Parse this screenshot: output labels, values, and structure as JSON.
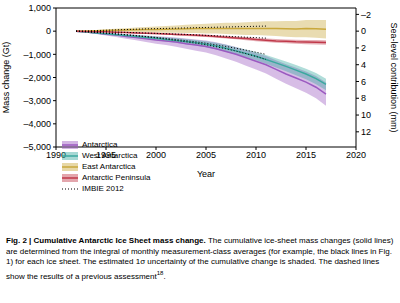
{
  "chart_data": {
    "type": "line",
    "x_label": "Year",
    "y_label": "Mass change (Gt)",
    "y2_label": "Sea-level contribution (mm)",
    "caption_title": "Fig. 2 | Cumulative Antarctic Ice Sheet mass change.",
    "caption": " The cumulative ice-sheet mass changes (solid lines) are determined from the integral of monthly measurement-class averages (for example, the black lines in Fig. 1) for each ice sheet. The estimated 1σ uncertainty of the cumulative change is shaded. The dashed lines show the results of a previous assessment",
    "caption_ref": "18",
    "x": [
      1992,
      1993,
      1994,
      1995,
      1996,
      1997,
      1998,
      1999,
      2000,
      2001,
      2002,
      2003,
      2004,
      2005,
      2006,
      2007,
      2008,
      2009,
      2010,
      2011,
      2012,
      2013,
      2014,
      2015,
      2016,
      2017
    ],
    "xlim": [
      1990,
      2020
    ],
    "xticks": [
      1990,
      1995,
      2000,
      2005,
      2010,
      2015,
      2020
    ],
    "ylim": [
      -5000,
      1000
    ],
    "yticks": [
      {
        "value": -5000,
        "label": "–5,000"
      },
      {
        "value": -4000,
        "label": "–4,000"
      },
      {
        "value": -3000,
        "label": "–3,000"
      },
      {
        "value": -2000,
        "label": "–2,000"
      },
      {
        "value": -1000,
        "label": "–1,000"
      },
      0,
      {
        "value": 1000,
        "label": "1,000"
      }
    ],
    "y2lim": [
      -2.76,
      13.81
    ],
    "y2ticks": [
      {
        "value": -2,
        "label": "–2"
      },
      0,
      2,
      4,
      6,
      8,
      10,
      12
    ],
    "legend": "lower left",
    "grid": false,
    "series": [
      {
        "name": "Antarctica",
        "color": "#9b59c0",
        "values": [
          0,
          -40,
          -80,
          -130,
          -170,
          -230,
          -270,
          -330,
          -380,
          -420,
          -470,
          -540,
          -600,
          -660,
          -760,
          -880,
          -1000,
          -1150,
          -1300,
          -1450,
          -1650,
          -1850,
          -2020,
          -2200,
          -2420,
          -2720
        ],
        "uncertainty": [
          0,
          20,
          40,
          60,
          80,
          100,
          120,
          140,
          160,
          180,
          200,
          220,
          240,
          260,
          280,
          300,
          320,
          340,
          360,
          380,
          400,
          420,
          440,
          460,
          480,
          500
        ],
        "imbie2012": [
          0,
          -30,
          -60,
          -90,
          -120,
          -160,
          -200,
          -240,
          -290,
          -340,
          -400,
          -460,
          -520,
          -590,
          -670,
          -760,
          -860,
          -970,
          -1090,
          -1220,
          null,
          null,
          null,
          null,
          null,
          null
        ]
      },
      {
        "name": "West Antarctica",
        "color": "#3aa99f",
        "values": [
          0,
          -40,
          -80,
          -110,
          -150,
          -190,
          -230,
          -270,
          -310,
          -360,
          -400,
          -450,
          -500,
          -560,
          -640,
          -740,
          -850,
          -960,
          -1080,
          -1220,
          -1370,
          -1520,
          -1680,
          -1850,
          -2050,
          -2300
        ],
        "uncertainty": [
          0,
          10,
          20,
          30,
          40,
          50,
          60,
          70,
          80,
          90,
          100,
          110,
          120,
          130,
          140,
          150,
          160,
          170,
          180,
          190,
          200,
          210,
          220,
          230,
          240,
          250
        ],
        "imbie2012": [
          0,
          -20,
          -50,
          -80,
          -110,
          -150,
          -190,
          -230,
          -270,
          -310,
          -360,
          -410,
          -460,
          -520,
          -590,
          -660,
          -740,
          -820,
          -910,
          -1000,
          null,
          null,
          null,
          null,
          null,
          null
        ]
      },
      {
        "name": "East Antarctica",
        "color": "#c9a83c",
        "values": [
          0,
          10,
          20,
          30,
          40,
          50,
          60,
          70,
          70,
          80,
          90,
          100,
          110,
          110,
          120,
          120,
          110,
          110,
          120,
          120,
          110,
          100,
          90,
          110,
          100,
          80
        ],
        "uncertainty": [
          0,
          16,
          32,
          48,
          64,
          80,
          96,
          112,
          128,
          144,
          160,
          176,
          192,
          208,
          224,
          240,
          256,
          272,
          288,
          304,
          320,
          336,
          352,
          368,
          384,
          400
        ],
        "imbie2012": [
          0,
          10,
          25,
          40,
          55,
          70,
          85,
          100,
          110,
          120,
          130,
          140,
          150,
          160,
          170,
          180,
          190,
          200,
          210,
          220,
          null,
          null,
          null,
          null,
          null,
          null
        ]
      },
      {
        "name": "Antarctic Peninsula",
        "color": "#c0394a",
        "values": [
          0,
          -10,
          -20,
          -30,
          -45,
          -60,
          -75,
          -90,
          -105,
          -120,
          -140,
          -160,
          -180,
          -200,
          -230,
          -260,
          -290,
          -320,
          -360,
          -390,
          -420,
          -440,
          -460,
          -470,
          -480,
          -490
        ],
        "uncertainty": [
          0,
          4,
          8,
          12,
          16,
          20,
          24,
          28,
          32,
          36,
          40,
          44,
          48,
          52,
          56,
          60,
          64,
          68,
          72,
          76,
          80,
          84,
          88,
          92,
          96,
          100
        ],
        "imbie2012": [
          0,
          -10,
          -20,
          -30,
          -40,
          -50,
          -65,
          -80,
          -95,
          -110,
          -125,
          -140,
          -160,
          -180,
          -200,
          -220,
          -240,
          -260,
          -280,
          -300,
          null,
          null,
          null,
          null,
          null,
          null
        ]
      }
    ],
    "reference": {
      "name": "IMBIE 2012",
      "color": "#000000",
      "line_style": "dotted"
    }
  }
}
